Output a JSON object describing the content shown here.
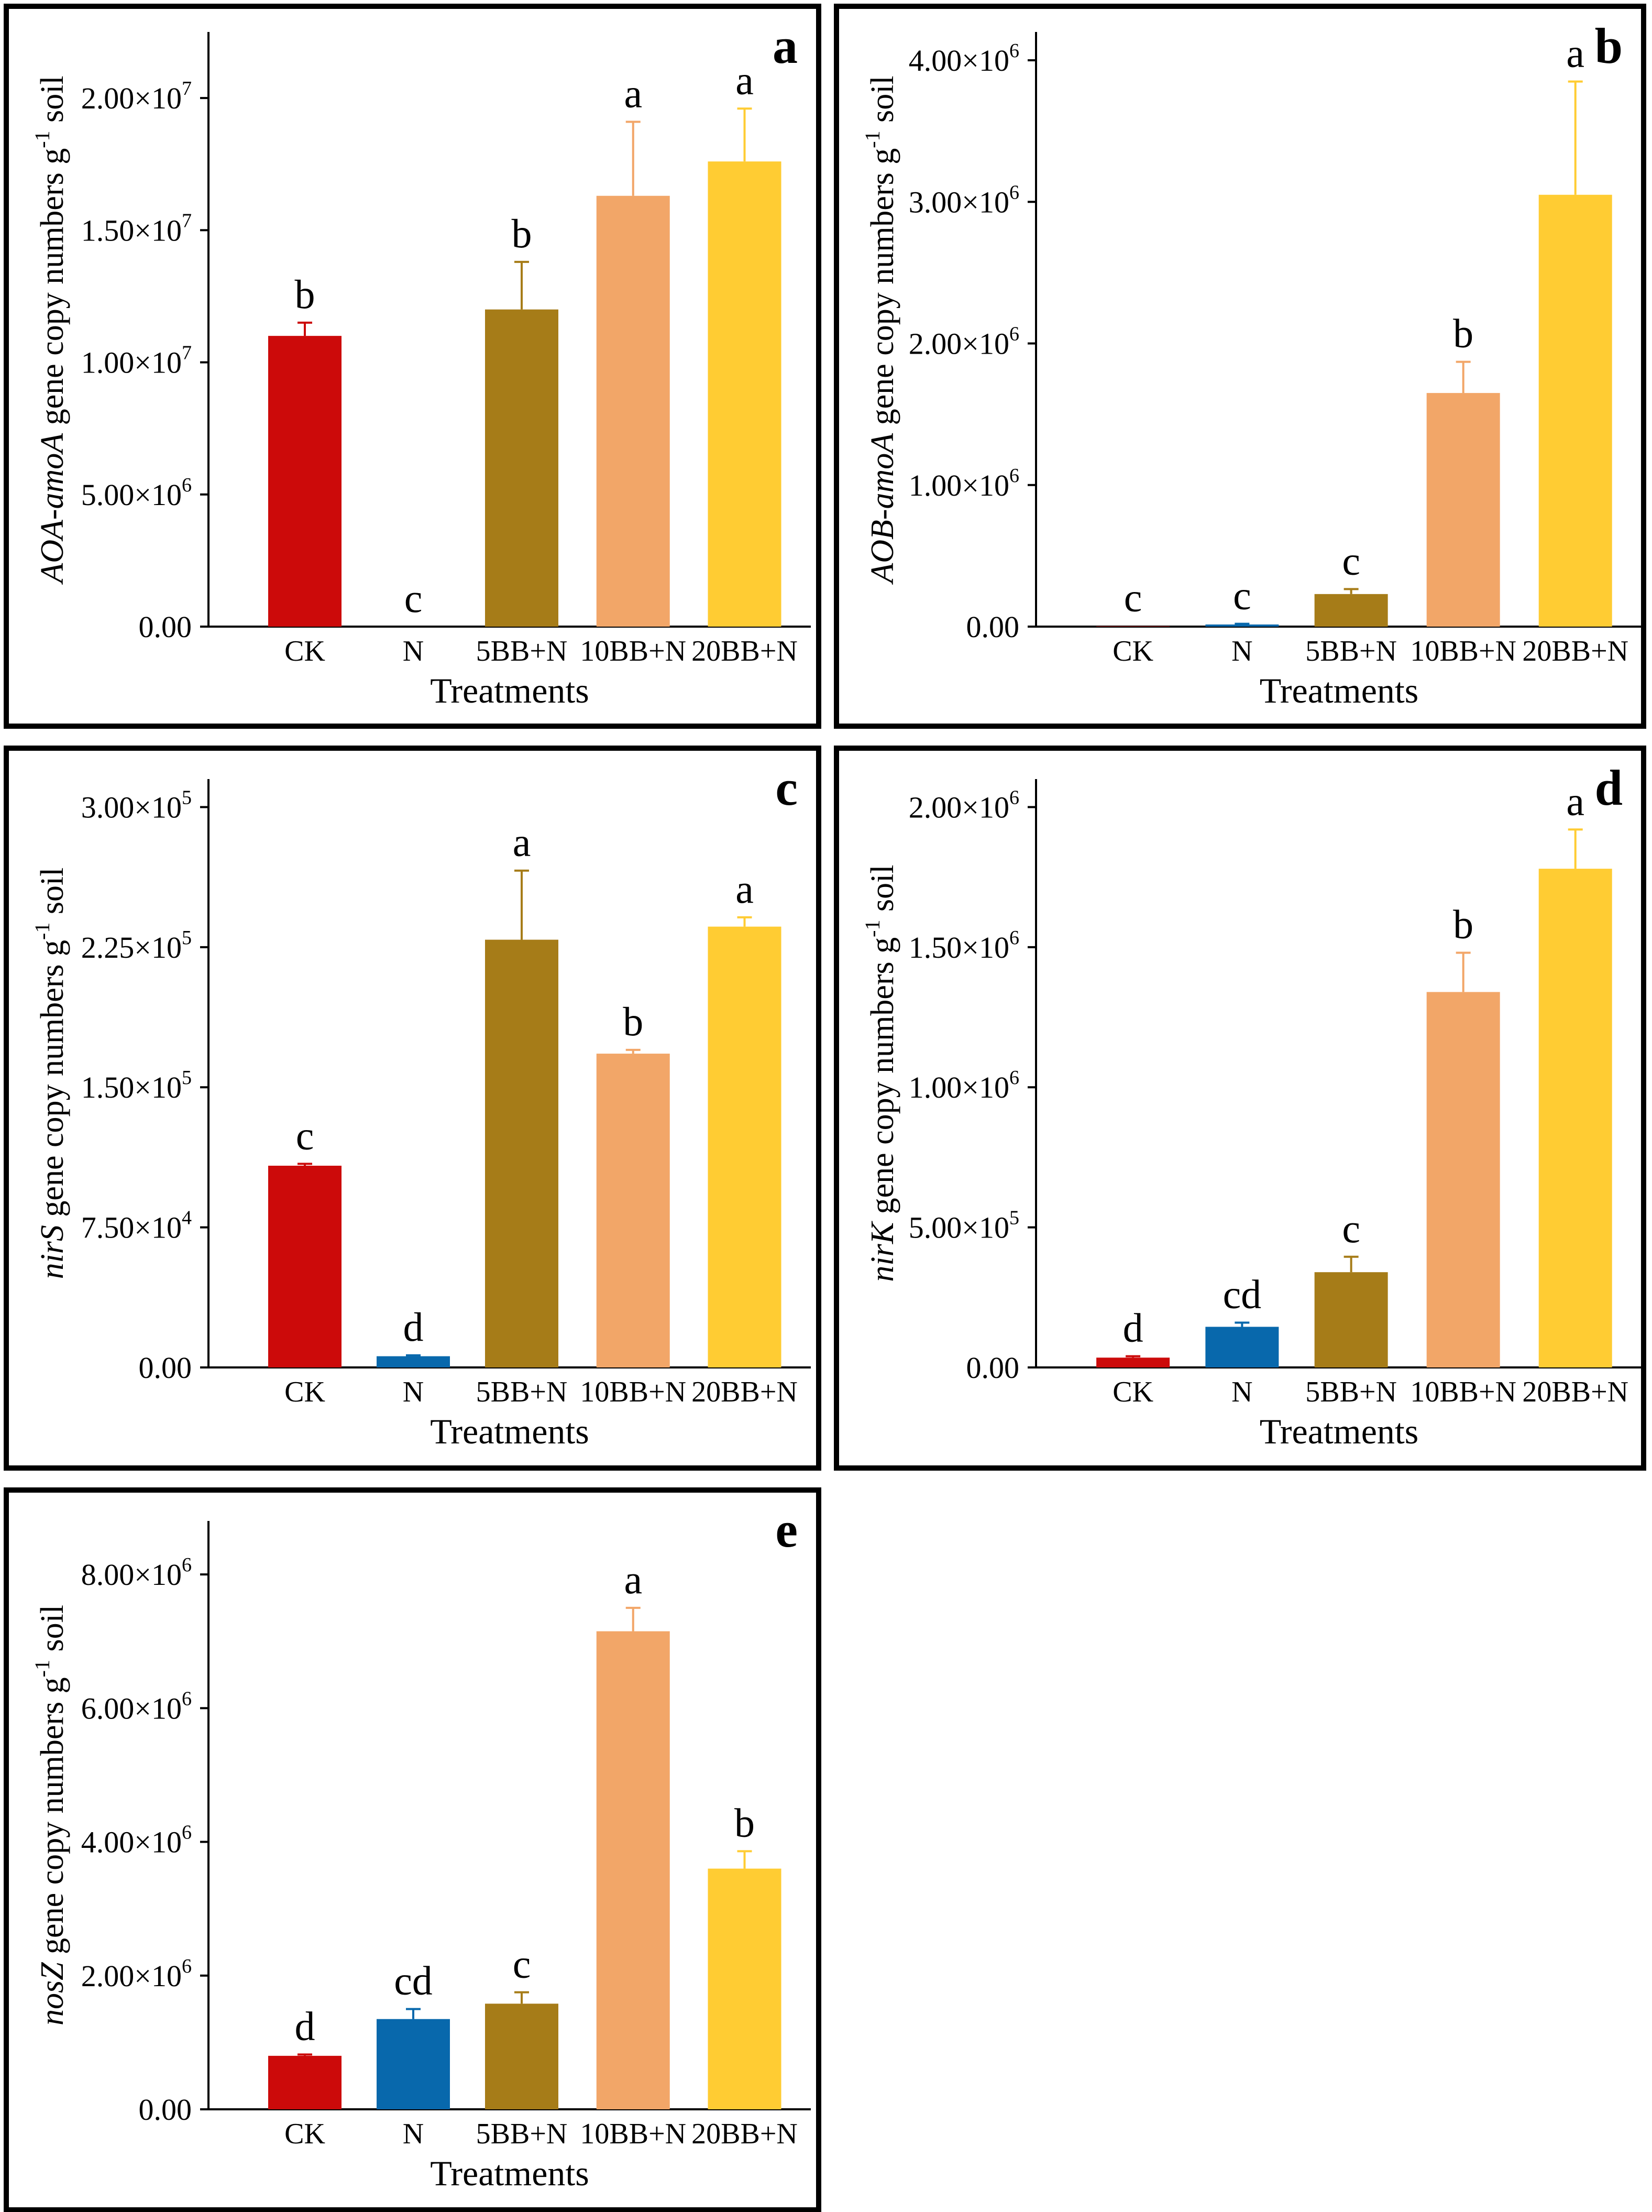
{
  "figure": {
    "categories": [
      "CK",
      "N",
      "5BB+N",
      "10BB+N",
      "20BB+N"
    ],
    "colors": [
      "#cc0a0a",
      "#0868ac",
      "#a67c18",
      "#f2a668",
      "#ffcc33"
    ],
    "xlabel": "Treatments"
  },
  "chart_data": [
    {
      "type": "bar",
      "panel": "a",
      "ylabel_gene": "AOA-amoA",
      "ylabel_rest": " gene copy numbers g",
      "ylabel_sup": "-1",
      "ylabel_end": " soil",
      "categories": [
        "CK",
        "N",
        "5BB+N",
        "10BB+N",
        "20BB+N"
      ],
      "values": [
        11000000,
        0,
        12000000,
        16300000,
        17600000
      ],
      "errors": [
        500000,
        0,
        1800000,
        2800000,
        2000000
      ],
      "letters": [
        "b",
        "c",
        "b",
        "a",
        "a"
      ],
      "ylim": [
        0,
        22500000
      ],
      "ticks": [
        0,
        5000000,
        10000000,
        15000000,
        20000000
      ],
      "tick_labels": [
        {
          "mant": "0.00",
          "exp": ""
        },
        {
          "mant": "5.00×10",
          "exp": "6"
        },
        {
          "mant": "1.00×10",
          "exp": "7"
        },
        {
          "mant": "1.50×10",
          "exp": "7"
        },
        {
          "mant": "2.00×10",
          "exp": "7"
        }
      ],
      "xlabel": "Treatments"
    },
    {
      "type": "bar",
      "panel": "b",
      "ylabel_gene": "AOB-amoA",
      "ylabel_rest": " gene copy numbers g",
      "ylabel_sup": "-1",
      "ylabel_end": " soil",
      "categories": [
        "CK",
        "N",
        "5BB+N",
        "10BB+N",
        "20BB+N"
      ],
      "values": [
        3000,
        15000,
        230000,
        1650000,
        3050000
      ],
      "errors": [
        2000,
        5000,
        35000,
        220000,
        800000
      ],
      "letters": [
        "c",
        "c",
        "c",
        "b",
        "a"
      ],
      "ylim": [
        0,
        4200000
      ],
      "ticks": [
        0,
        1000000,
        2000000,
        3000000,
        4000000
      ],
      "tick_labels": [
        {
          "mant": "0.00",
          "exp": ""
        },
        {
          "mant": "1.00×10",
          "exp": "6"
        },
        {
          "mant": "2.00×10",
          "exp": "6"
        },
        {
          "mant": "3.00×10",
          "exp": "6"
        },
        {
          "mant": "4.00×10",
          "exp": "6"
        }
      ],
      "xlabel": "Treatments"
    },
    {
      "type": "bar",
      "panel": "c",
      "ylabel_gene": "nirS",
      "ylabel_rest": " gene copy numbers g",
      "ylabel_sup": "-1",
      "ylabel_end": " soil",
      "categories": [
        "CK",
        "N",
        "5BB+N",
        "10BB+N",
        "20BB+N"
      ],
      "values": [
        108000,
        6000,
        229000,
        168000,
        236000
      ],
      "errors": [
        1000,
        500,
        37000,
        2000,
        5000
      ],
      "letters": [
        "c",
        "d",
        "a",
        "b",
        "a"
      ],
      "ylim": [
        0,
        315000
      ],
      "ticks": [
        0,
        75000,
        150000,
        225000,
        300000
      ],
      "tick_labels": [
        {
          "mant": "0.00",
          "exp": ""
        },
        {
          "mant": "7.50×10",
          "exp": "4"
        },
        {
          "mant": "1.50×10",
          "exp": "5"
        },
        {
          "mant": "2.25×10",
          "exp": "5"
        },
        {
          "mant": "3.00×10",
          "exp": "5"
        }
      ],
      "xlabel": "Treatments"
    },
    {
      "type": "bar",
      "panel": "d",
      "ylabel_gene": "nirK",
      "ylabel_rest": " gene copy numbers g",
      "ylabel_sup": "-1",
      "ylabel_end": " soil",
      "categories": [
        "CK",
        "N",
        "5BB+N",
        "10BB+N",
        "20BB+N"
      ],
      "values": [
        35000,
        145000,
        340000,
        1340000,
        1780000
      ],
      "errors": [
        5000,
        15000,
        55000,
        140000,
        140000
      ],
      "letters": [
        "d",
        "cd",
        "c",
        "b",
        "a"
      ],
      "ylim": [
        0,
        2100000
      ],
      "ticks": [
        0,
        500000,
        1000000,
        1500000,
        2000000
      ],
      "tick_labels": [
        {
          "mant": "0.00",
          "exp": ""
        },
        {
          "mant": "5.00×10",
          "exp": "5"
        },
        {
          "mant": "1.00×10",
          "exp": "6"
        },
        {
          "mant": "1.50×10",
          "exp": "6"
        },
        {
          "mant": "2.00×10",
          "exp": "6"
        }
      ],
      "xlabel": "Treatments"
    },
    {
      "type": "bar",
      "panel": "e",
      "ylabel_gene": "nosZ",
      "ylabel_rest": " gene copy numbers g",
      "ylabel_sup": "-1",
      "ylabel_end": " soil",
      "categories": [
        "CK",
        "N",
        "5BB+N",
        "10BB+N",
        "20BB+N"
      ],
      "values": [
        800000,
        1350000,
        1580000,
        7150000,
        3600000
      ],
      "errors": [
        20000,
        150000,
        170000,
        350000,
        260000
      ],
      "letters": [
        "d",
        "cd",
        "c",
        "a",
        "b"
      ],
      "ylim": [
        0,
        8800000
      ],
      "ticks": [
        0,
        2000000,
        4000000,
        6000000,
        8000000
      ],
      "tick_labels": [
        {
          "mant": "0.00",
          "exp": ""
        },
        {
          "mant": "2.00×10",
          "exp": "6"
        },
        {
          "mant": "4.00×10",
          "exp": "6"
        },
        {
          "mant": "6.00×10",
          "exp": "6"
        },
        {
          "mant": "8.00×10",
          "exp": "6"
        }
      ],
      "xlabel": "Treatments"
    }
  ]
}
